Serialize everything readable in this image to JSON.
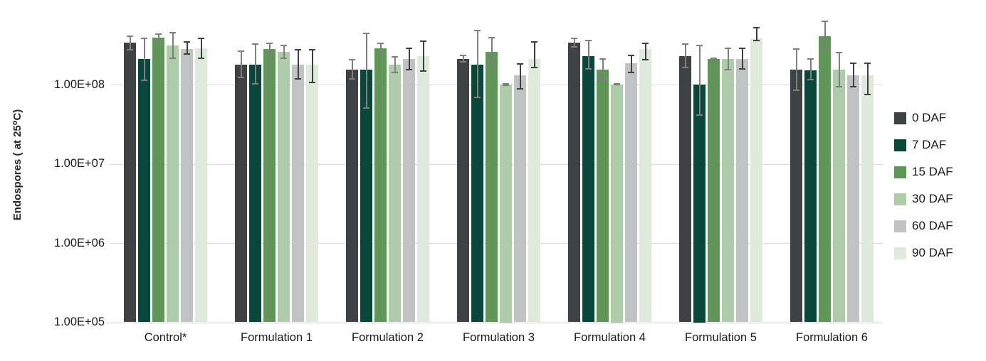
{
  "chart_data": {
    "type": "bar",
    "title": "",
    "ylabel": "Endospores ( at 25⁰C)",
    "xlabel": "",
    "scale_y": "log10",
    "ylim": [
      100000,
      1000000000
    ],
    "grid": "horizontal",
    "legend_position": "right",
    "error_bars": true,
    "yticks": [
      {
        "value": 100000000,
        "label": "1.00E+08"
      },
      {
        "value": 10000000,
        "label": "1.00E+07"
      },
      {
        "value": 1000000,
        "label": "1.00E+06"
      },
      {
        "value": 100000,
        "label": "1.00E+05"
      }
    ],
    "categories": [
      "Control*",
      "Formulation 1",
      "Formulation 2",
      "Formulation 3",
      "Formulation 4",
      "Formulation 5",
      "Formulation 6"
    ],
    "series": [
      {
        "name": "0 DAF",
        "color": "#3f4245",
        "error_color": "#7f7f7f",
        "values": [
          340000000.0,
          180000000.0,
          155000000.0,
          210000000.0,
          340000000.0,
          230000000.0,
          155000000.0
        ],
        "err_hi": [
          420000000.0,
          270000000.0,
          210000000.0,
          240000000.0,
          390000000.0,
          330000000.0,
          285000000.0
        ],
        "err_lo": [
          270000000.0,
          120000000.0,
          115000000.0,
          190000000.0,
          290000000.0,
          160000000.0,
          83000000.0
        ]
      },
      {
        "name": "7 DAF",
        "color": "#0a463a",
        "error_color": "#7f7f7f",
        "values": [
          210000000.0,
          180000000.0,
          155000000.0,
          180000000.0,
          230000000.0,
          100000000.0,
          150000000.0
        ],
        "err_hi": [
          390000000.0,
          330000000.0,
          450000000.0,
          490000000.0,
          365000000.0,
          320000000.0,
          215000000.0
        ],
        "err_lo": [
          110000000.0,
          100000000.0,
          50000000.0,
          68000000.0,
          155000000.0,
          40000000.0,
          113000000.0
        ]
      },
      {
        "name": "15 DAF",
        "color": "#629559",
        "error_color": "#7f7f7f",
        "values": [
          390000000.0,
          280000000.0,
          285000000.0,
          260000000.0,
          155000000.0,
          210000000.0,
          410000000.0
        ],
        "err_hi": [
          440000000.0,
          340000000.0,
          340000000.0,
          395000000.0,
          215000000.0,
          220000000.0,
          640000000.0
        ],
        "err_lo": [
          340000000.0,
          240000000.0,
          240000000.0,
          173000000.0,
          110000000.0,
          200000000.0,
          270000000.0
        ]
      },
      {
        "name": "30 DAF",
        "color": "#aecbaa",
        "error_color": "#7f7f7f",
        "values": [
          310000000.0,
          260000000.0,
          180000000.0,
          100000000.0,
          100000000.0,
          210000000.0,
          155000000.0
        ],
        "err_hi": [
          460000000.0,
          315000000.0,
          230000000.0,
          105000000.0,
          105000000.0,
          290000000.0,
          260000000.0
        ],
        "err_lo": [
          210000000.0,
          210000000.0,
          140000000.0,
          95000000.0,
          97000000.0,
          150000000.0,
          92000000.0
        ]
      },
      {
        "name": "60 DAF",
        "color": "#c1c2c4",
        "error_color": "#3f3f3f",
        "values": [
          280000000.0,
          180000000.0,
          210000000.0,
          130000000.0,
          185000000.0,
          210000000.0,
          130000000.0
        ],
        "err_hi": [
          350000000.0,
          280000000.0,
          290000000.0,
          185000000.0,
          240000000.0,
          295000000.0,
          190000000.0
        ],
        "err_lo": [
          240000000.0,
          115000000.0,
          150000000.0,
          87000000.0,
          140000000.0,
          155000000.0,
          92000000.0
        ]
      },
      {
        "name": "90 DAF",
        "color": "#dfe9dc",
        "error_color": "#3f3f3f",
        "values": [
          285000000.0,
          180000000.0,
          230000000.0,
          210000000.0,
          280000000.0,
          385000000.0,
          130000000.0
        ],
        "err_hi": [
          390000000.0,
          280000000.0,
          360000000.0,
          350000000.0,
          340000000.0,
          530000000.0,
          190000000.0
        ],
        "err_lo": [
          210000000.0,
          105000000.0,
          145000000.0,
          160000000.0,
          200000000.0,
          350000000.0,
          73000000.0
        ]
      }
    ]
  }
}
